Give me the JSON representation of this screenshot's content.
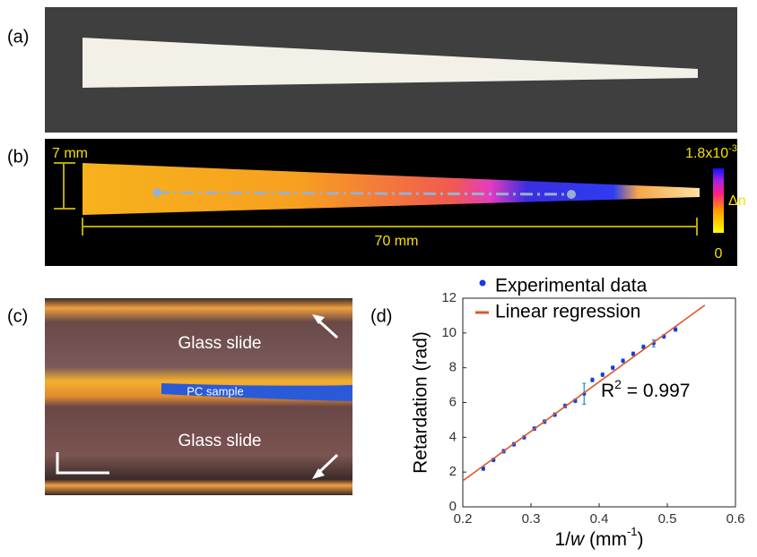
{
  "panels": {
    "a": {
      "label": "(a)"
    },
    "b": {
      "label": "(b)",
      "width_label": "7 mm",
      "length_label": "70 mm",
      "colorbar_max": {
        "base": "1.8x10",
        "sup": "-3"
      },
      "colorbar_name": "Δn",
      "colorbar_min": "0"
    },
    "c": {
      "label": "(c)",
      "top_layer": "Glass slide",
      "middle_layer": "PC sample",
      "bottom_layer": "Glass slide"
    },
    "d": {
      "label": "(d)"
    }
  },
  "chart_data": {
    "type": "scatter",
    "xlabel": {
      "base": "1/",
      "italic": "w",
      "rest": "  (mm",
      "sup": "-1",
      "close": ")"
    },
    "ylabel": "Retardation (rad)",
    "annotation": {
      "base": "R",
      "sup": "2",
      "rest": " = 0.997"
    },
    "xlim": [
      0.2,
      0.6
    ],
    "xticks": [
      0.2,
      0.3,
      0.4,
      0.5,
      0.6
    ],
    "ylim": [
      0,
      12
    ],
    "yticks": [
      0,
      2,
      4,
      6,
      8,
      10,
      12
    ],
    "legend": "top-left",
    "series": [
      {
        "name": "Experimental data",
        "color": "#1a35e6",
        "error_color": "#1e9fd0",
        "x": [
          0.23,
          0.245,
          0.26,
          0.275,
          0.29,
          0.305,
          0.32,
          0.335,
          0.35,
          0.365,
          0.378,
          0.39,
          0.405,
          0.42,
          0.435,
          0.45,
          0.465,
          0.48,
          0.495,
          0.512
        ],
        "values": [
          2.2,
          2.7,
          3.2,
          3.6,
          4.0,
          4.5,
          4.9,
          5.3,
          5.8,
          6.1,
          6.5,
          7.3,
          7.6,
          8.0,
          8.4,
          8.8,
          9.2,
          9.4,
          9.8,
          10.2
        ],
        "errors": [
          0.1,
          0.1,
          0.1,
          0.1,
          0.1,
          0.1,
          0.1,
          0.1,
          0.1,
          0.1,
          0.6,
          0.1,
          0.1,
          0.1,
          0.1,
          0.1,
          0.1,
          0.2,
          0.1,
          0.1
        ]
      },
      {
        "name": "Linear regression",
        "color": "#e0552b",
        "x": [
          0.2,
          0.555
        ],
        "values": [
          1.5,
          11.6
        ]
      }
    ]
  }
}
